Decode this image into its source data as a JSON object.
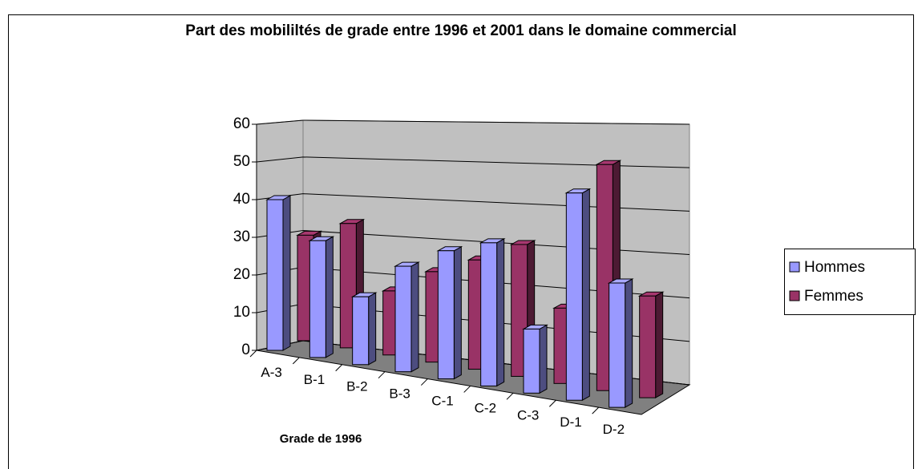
{
  "chart_data": {
    "type": "bar3d",
    "title": "Part des mobililtés de grade entre 1996 et 2001  dans le domaine commercial",
    "xlabel": "Grade de 1996",
    "categories": [
      "A-3",
      "B-1",
      "B-2",
      "B-3",
      "C-1",
      "C-2",
      "C-3",
      "D-1",
      "D-2"
    ],
    "series": [
      {
        "name": "Hommes",
        "color": "#9999ff",
        "values": [
          40,
          31,
          18,
          28,
          34,
          38,
          17,
          55,
          33
        ]
      },
      {
        "name": "Femmes",
        "color": "#993366",
        "values": [
          28,
          33,
          17,
          24,
          29,
          35,
          20,
          60,
          27
        ]
      }
    ],
    "ylim": [
      0,
      60
    ],
    "yticks": [
      0,
      10,
      20,
      30,
      40,
      50,
      60
    ],
    "grid": true,
    "legend": "right"
  }
}
